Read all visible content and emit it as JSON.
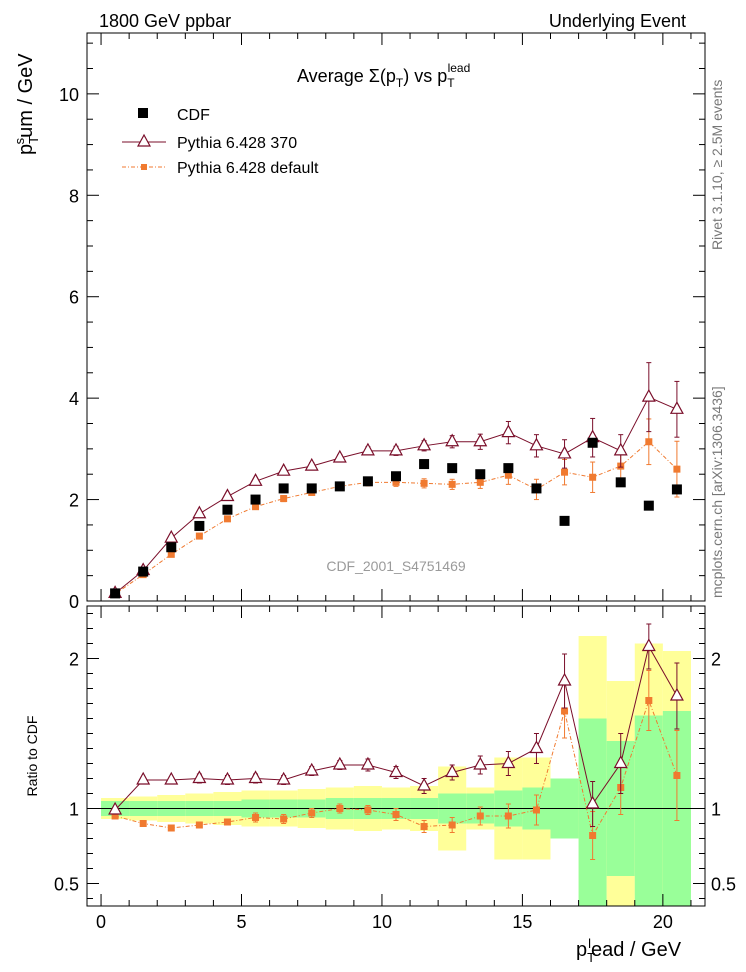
{
  "header": {
    "left": "1800 GeV ppbar",
    "right": "Underlying Event"
  },
  "side_labels": {
    "rivet": "Rivet 3.1.10, ≥ 2.5M events",
    "mcplots": "mcplots.cern.ch [arXiv:1306.3436]"
  },
  "watermark": "CDF_2001_S4751469",
  "chart_data": [
    {
      "type": "scatter",
      "title": "Average Σ(pT) vs pT lead",
      "ylabel": "pTsum / GeV",
      "xlim": [
        -0.5,
        21.5
      ],
      "ylim": [
        0,
        11.2
      ],
      "yticks": [
        0,
        2,
        4,
        6,
        8,
        10
      ],
      "legend": {
        "placement": "top-left"
      },
      "x": [
        0.5,
        1.5,
        2.5,
        3.5,
        4.5,
        5.5,
        6.5,
        7.5,
        8.5,
        9.5,
        10.5,
        11.5,
        12.5,
        13.5,
        14.5,
        15.5,
        16.5,
        17.5,
        18.5,
        19.5,
        20.5
      ],
      "series": [
        {
          "name": "CDF",
          "color": "#000000",
          "marker": "square",
          "values": [
            0.15,
            0.58,
            1.06,
            1.48,
            1.8,
            2.0,
            2.22,
            2.22,
            2.26,
            2.36,
            2.46,
            2.7,
            2.62,
            2.5,
            2.62,
            2.22,
            1.58,
            3.12,
            2.34,
            1.88,
            2.2
          ]
        },
        {
          "name": "Pythia 6.428 370",
          "color": "#7a0e2a",
          "marker": "triangle",
          "values": [
            0.15,
            0.6,
            1.24,
            1.72,
            2.06,
            2.36,
            2.56,
            2.66,
            2.82,
            2.96,
            2.96,
            3.06,
            3.14,
            3.14,
            3.32,
            3.06,
            2.9,
            3.22,
            2.96,
            4.02,
            3.78
          ],
          "errors": [
            0.02,
            0.03,
            0.04,
            0.05,
            0.05,
            0.06,
            0.06,
            0.07,
            0.07,
            0.08,
            0.09,
            0.1,
            0.12,
            0.15,
            0.22,
            0.22,
            0.28,
            0.38,
            0.32,
            0.68,
            0.55
          ]
        },
        {
          "name": "Pythia 6.428 default",
          "color": "#f07a30",
          "marker": "square-small",
          "values": [
            0.14,
            0.52,
            0.92,
            1.28,
            1.62,
            1.86,
            2.02,
            2.14,
            2.26,
            2.34,
            2.34,
            2.32,
            2.3,
            2.34,
            2.48,
            2.2,
            2.54,
            2.44,
            2.66,
            3.14,
            2.6
          ],
          "errors": [
            0.02,
            0.03,
            0.04,
            0.04,
            0.05,
            0.05,
            0.06,
            0.06,
            0.07,
            0.07,
            0.08,
            0.09,
            0.1,
            0.12,
            0.18,
            0.2,
            0.25,
            0.3,
            0.3,
            0.45,
            0.55
          ]
        }
      ]
    },
    {
      "type": "scatter",
      "ylabel": "Ratio to CDF",
      "xlabel": "pTlead / GeV",
      "xlim": [
        -0.5,
        21.5
      ],
      "ylim": [
        0.35,
        2.35
      ],
      "xticks": [
        0,
        5,
        10,
        15,
        20
      ],
      "yticks": [
        0.5,
        1,
        2
      ],
      "x": [
        0.5,
        1.5,
        2.5,
        3.5,
        4.5,
        5.5,
        6.5,
        7.5,
        8.5,
        9.5,
        10.5,
        11.5,
        12.5,
        13.5,
        14.5,
        15.5,
        16.5,
        17.5,
        18.5,
        19.5,
        20.5
      ],
      "bands": {
        "stat_green": [
          [
            0.95,
            1.05
          ],
          [
            0.95,
            1.05
          ],
          [
            0.95,
            1.05
          ],
          [
            0.95,
            1.05
          ],
          [
            0.95,
            1.05
          ],
          [
            0.94,
            1.06
          ],
          [
            0.94,
            1.06
          ],
          [
            0.94,
            1.06
          ],
          [
            0.93,
            1.07
          ],
          [
            0.93,
            1.07
          ],
          [
            0.93,
            1.07
          ],
          [
            0.93,
            1.07
          ],
          [
            0.9,
            1.1
          ],
          [
            0.9,
            1.1
          ],
          [
            0.88,
            1.12
          ],
          [
            0.86,
            1.14
          ],
          [
            0.8,
            1.2
          ],
          [
            0.35,
            1.6
          ],
          [
            0.55,
            1.45
          ],
          [
            0.35,
            1.62
          ],
          [
            0.35,
            1.65
          ]
        ],
        "syst_yellow": [
          [
            0.93,
            1.07
          ],
          [
            0.92,
            1.08
          ],
          [
            0.91,
            1.09
          ],
          [
            0.9,
            1.1
          ],
          [
            0.89,
            1.11
          ],
          [
            0.88,
            1.12
          ],
          [
            0.88,
            1.12
          ],
          [
            0.87,
            1.13
          ],
          [
            0.86,
            1.14
          ],
          [
            0.85,
            1.15
          ],
          [
            0.86,
            1.14
          ],
          [
            0.85,
            1.15
          ],
          [
            0.72,
            1.28
          ],
          [
            0.86,
            1.14
          ],
          [
            0.66,
            1.34
          ],
          [
            0.66,
            1.34
          ],
          [
            0.8,
            1.2
          ],
          [
            0.35,
            2.15
          ],
          [
            0.35,
            1.85
          ],
          [
            0.42,
            2.1
          ],
          [
            0.44,
            2.05
          ]
        ]
      },
      "series": [
        {
          "name": "Pythia 6.428 370",
          "color": "#7a0e2a",
          "marker": "triangle",
          "values": [
            0.99,
            1.19,
            1.19,
            1.2,
            1.19,
            1.2,
            1.19,
            1.25,
            1.29,
            1.29,
            1.24,
            1.15,
            1.24,
            1.29,
            1.3,
            1.4,
            1.85,
            1.03,
            1.3,
            2.08,
            1.75
          ],
          "errors": [
            0.02,
            0.02,
            0.02,
            0.03,
            0.03,
            0.03,
            0.03,
            0.03,
            0.03,
            0.04,
            0.04,
            0.05,
            0.05,
            0.06,
            0.08,
            0.1,
            0.18,
            0.15,
            0.2,
            0.15,
            0.22
          ]
        },
        {
          "name": "Pythia 6.428 default",
          "color": "#f07a30",
          "marker": "square-small",
          "values": [
            0.95,
            0.9,
            0.87,
            0.89,
            0.91,
            0.94,
            0.93,
            0.97,
            1.0,
            0.99,
            0.96,
            0.88,
            0.89,
            0.95,
            0.95,
            0.99,
            1.65,
            0.82,
            1.14,
            1.72,
            1.22
          ],
          "errors": [
            0.02,
            0.02,
            0.02,
            0.02,
            0.02,
            0.03,
            0.03,
            0.03,
            0.03,
            0.03,
            0.04,
            0.04,
            0.05,
            0.06,
            0.08,
            0.1,
            0.18,
            0.16,
            0.18,
            0.2,
            0.3
          ]
        }
      ]
    }
  ]
}
